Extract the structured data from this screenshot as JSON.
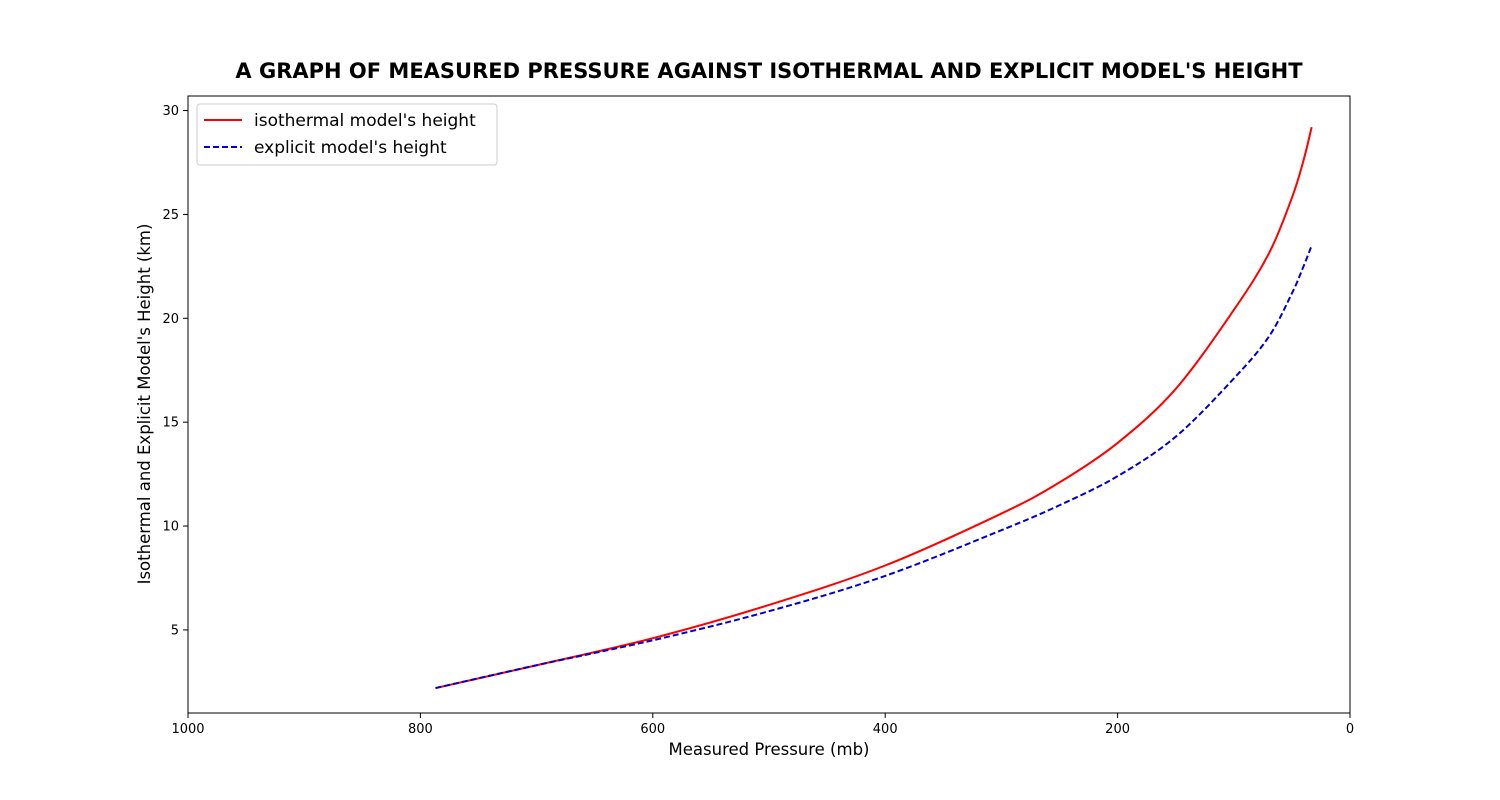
{
  "chart_data": {
    "type": "line",
    "title": "A GRAPH OF MEASURED PRESSURE AGAINST ISOTHERMAL AND EXPLICIT MODEL'S HEIGHT",
    "xlabel": "Measured Pressure (mb)",
    "ylabel": "Isothermal and Explicit Model's Height (km)",
    "xlim": [
      1000,
      0
    ],
    "ylim": [
      1.0,
      30.7
    ],
    "x_ticks": [
      1000,
      800,
      600,
      400,
      200,
      0
    ],
    "x_tick_labels": [
      "1000",
      "800",
      "600",
      "400",
      "200",
      "0"
    ],
    "y_ticks": [
      5,
      10,
      15,
      20,
      25,
      30
    ],
    "y_tick_labels": [
      "5",
      "10",
      "15",
      "20",
      "25",
      "30"
    ],
    "grid": false,
    "legend_position": "top-left",
    "series": [
      {
        "name": "isothermal model's height",
        "color": "#ff0000",
        "style": "solid",
        "x": [
          787,
          700,
          600,
          500,
          400,
          300,
          250,
          200,
          150,
          100,
          70,
          50,
          40,
          33
        ],
        "y": [
          2.2,
          3.3,
          4.6,
          6.2,
          8.1,
          10.6,
          12.1,
          14.0,
          16.6,
          20.4,
          23.1,
          25.8,
          27.6,
          29.2
        ]
      },
      {
        "name": "explicit model's height",
        "color": "#0000cc",
        "style": "dashed",
        "x": [
          787,
          700,
          600,
          500,
          400,
          300,
          250,
          200,
          150,
          100,
          70,
          50,
          40,
          33
        ],
        "y": [
          2.2,
          3.3,
          4.5,
          5.9,
          7.6,
          9.8,
          11.0,
          12.4,
          14.3,
          17.1,
          19.1,
          21.2,
          22.5,
          23.5
        ]
      }
    ]
  }
}
